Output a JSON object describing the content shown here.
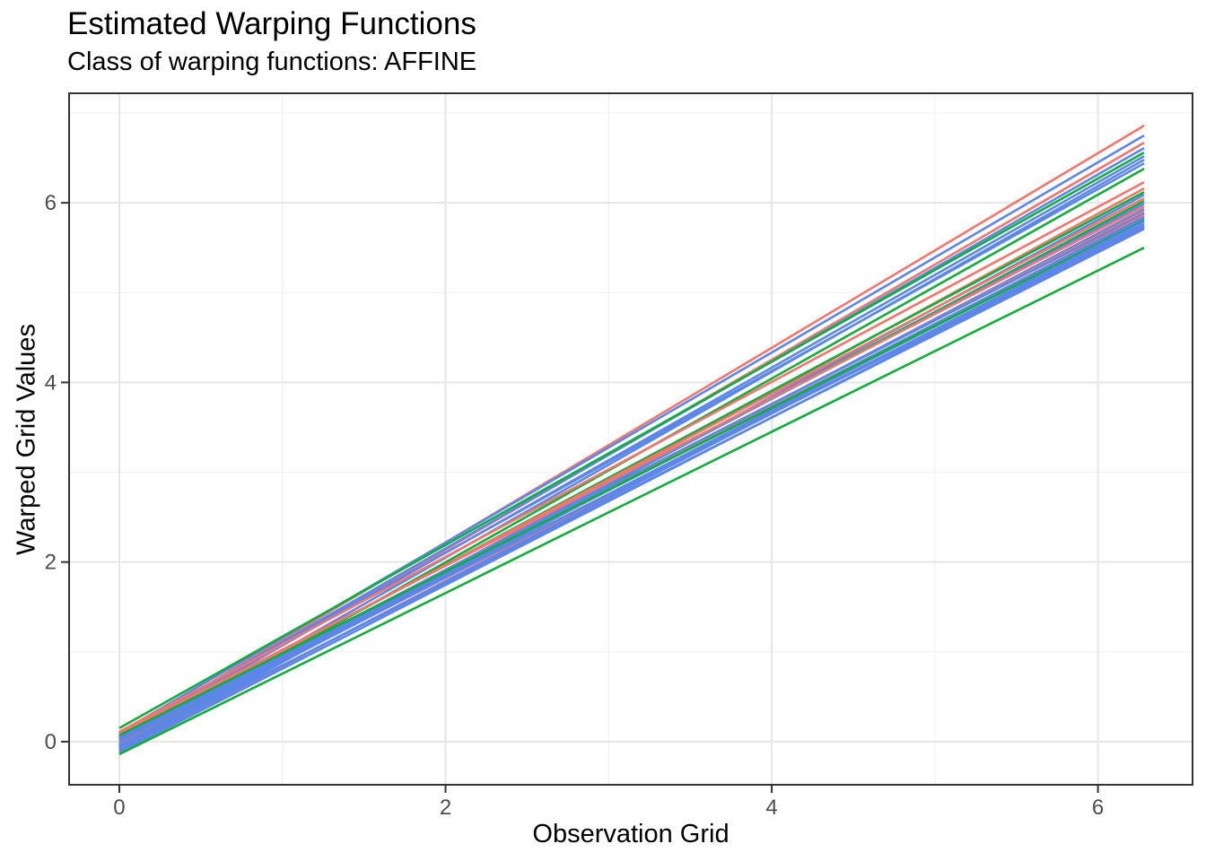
{
  "chart_data": {
    "type": "line",
    "title": "Estimated Warping Functions",
    "subtitle": "Class of warping functions: AFFINE",
    "xlabel": "Observation Grid",
    "ylabel": "Warped Grid Values",
    "legend": "none",
    "grid": true,
    "xlim": [
      -0.308,
      6.58
    ],
    "ylim": [
      -0.48,
      7.22
    ],
    "x_ticks": {
      "values": [
        0,
        2,
        4,
        6
      ],
      "labels": [
        "0",
        "2",
        "4",
        "6"
      ]
    },
    "y_ticks": {
      "values": [
        0,
        2,
        4,
        6
      ],
      "labels": [
        "0",
        "2",
        "4",
        "6"
      ]
    },
    "x_minor": [
      1,
      3,
      5
    ],
    "y_minor": [
      1,
      3,
      5,
      7
    ],
    "x_curve_range": [
      0,
      6.2832
    ],
    "palette": {
      "red": "#F3756C",
      "green": "#12AE3C",
      "blue": "#5C87E9"
    },
    "style": {
      "background": "#FFFFFF",
      "grid_major_color": "#E6E6E6",
      "grid_minor_color": "#F0F0F0",
      "grid_major_width": 2,
      "grid_minor_width": 1.1,
      "panel_border_color": "#333333",
      "panel_border_width": 2,
      "tick_color": "#333333",
      "tick_length": 8,
      "tick_label_color": "#4D4D4D",
      "line_width": 2.6
    },
    "series": [
      {
        "color": "red",
        "start": 0.05,
        "end": 6.86
      },
      {
        "color": "blue",
        "start": 0.1,
        "end": 6.75
      },
      {
        "color": "red",
        "start": 0.02,
        "end": 6.67
      },
      {
        "color": "blue",
        "start": 0.07,
        "end": 6.61
      },
      {
        "color": "green",
        "start": 0.15,
        "end": 6.56
      },
      {
        "color": "blue",
        "start": 0.04,
        "end": 6.52
      },
      {
        "color": "blue",
        "start": -0.02,
        "end": 6.48
      },
      {
        "color": "blue",
        "start": 0.08,
        "end": 6.44
      },
      {
        "color": "green",
        "start": -0.05,
        "end": 6.38
      },
      {
        "color": "red",
        "start": 0.11,
        "end": 6.23
      },
      {
        "color": "red",
        "start": -0.08,
        "end": 6.16
      },
      {
        "color": "green",
        "start": 0.03,
        "end": 6.12
      },
      {
        "color": "blue",
        "start": -0.1,
        "end": 6.09
      },
      {
        "color": "red",
        "start": 0.06,
        "end": 6.05
      },
      {
        "color": "green",
        "start": -0.03,
        "end": 6.02
      },
      {
        "color": "blue",
        "start": 0.01,
        "end": 5.99
      },
      {
        "color": "red",
        "start": 0.09,
        "end": 5.96
      },
      {
        "color": "blue",
        "start": -0.06,
        "end": 5.93
      },
      {
        "color": "red",
        "start": -0.01,
        "end": 5.9
      },
      {
        "color": "blue",
        "start": 0.05,
        "end": 5.88
      },
      {
        "color": "red",
        "start": -0.11,
        "end": 5.86
      },
      {
        "color": "blue",
        "start": 0.02,
        "end": 5.84
      },
      {
        "color": "blue",
        "start": -0.04,
        "end": 5.82
      },
      {
        "color": "green",
        "start": 0.07,
        "end": 5.8
      },
      {
        "color": "blue",
        "start": -0.09,
        "end": 5.79
      },
      {
        "color": "blue",
        "start": 0.0,
        "end": 5.76
      },
      {
        "color": "blue",
        "start": -0.12,
        "end": 5.74
      },
      {
        "color": "blue",
        "start": 0.03,
        "end": 5.73
      },
      {
        "color": "blue",
        "start": -0.07,
        "end": 5.71
      },
      {
        "color": "green",
        "start": -0.14,
        "end": 5.5
      }
    ]
  }
}
